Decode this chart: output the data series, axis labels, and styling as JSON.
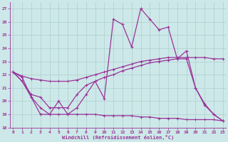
{
  "xlabel": "Windchill (Refroidissement éolien,°C)",
  "bg_color": "#cde8e8",
  "line_color": "#993399",
  "grid_color": "#aacccc",
  "xlim": [
    0,
    23
  ],
  "ylim": [
    18,
    27.5
  ],
  "yticks": [
    18,
    19,
    20,
    21,
    22,
    23,
    24,
    25,
    26,
    27
  ],
  "xticks": [
    0,
    1,
    2,
    3,
    4,
    5,
    6,
    7,
    8,
    9,
    10,
    11,
    12,
    13,
    14,
    15,
    16,
    17,
    18,
    19,
    20,
    21,
    22,
    23
  ],
  "line1_x": [
    0,
    1,
    2,
    3,
    4,
    5,
    6,
    7,
    8,
    9,
    10,
    11,
    12,
    13,
    14,
    15,
    16,
    17,
    18,
    19,
    20,
    21,
    22,
    23
  ],
  "line1_y": [
    22.2,
    21.9,
    21.7,
    21.6,
    21.5,
    21.5,
    21.5,
    21.6,
    21.8,
    22.0,
    22.2,
    22.4,
    22.6,
    22.8,
    23.0,
    23.1,
    23.2,
    23.3,
    23.3,
    23.3,
    23.3,
    23.3,
    23.2,
    23.2
  ],
  "line2_x": [
    0,
    1,
    2,
    3,
    4,
    5,
    6,
    7,
    8,
    9,
    10,
    11,
    12,
    13,
    14,
    15,
    16,
    17,
    18,
    19,
    20,
    21,
    22,
    23
  ],
  "line2_y": [
    22.2,
    21.8,
    20.3,
    19.0,
    19.0,
    20.0,
    19.0,
    19.5,
    20.5,
    21.5,
    20.2,
    26.2,
    25.8,
    24.1,
    27.0,
    26.2,
    25.4,
    25.6,
    23.2,
    23.8,
    21.0,
    19.7,
    19.0,
    18.5
  ],
  "line3_x": [
    0,
    1,
    2,
    3,
    4,
    5,
    6,
    7,
    8,
    9,
    10,
    11,
    12,
    13,
    14,
    15,
    16,
    17,
    18,
    19,
    20,
    21,
    22,
    23
  ],
  "line3_y": [
    22.2,
    21.5,
    20.5,
    20.3,
    19.5,
    19.5,
    19.5,
    20.5,
    21.2,
    21.5,
    21.8,
    22.0,
    22.3,
    22.5,
    22.7,
    22.9,
    23.0,
    23.1,
    23.2,
    23.2,
    21.0,
    19.8,
    19.0,
    18.5
  ],
  "line4_x": [
    0,
    1,
    2,
    3,
    4,
    5,
    6,
    7,
    8,
    9,
    10,
    11,
    12,
    13,
    14,
    15,
    16,
    17,
    18,
    19,
    20,
    21,
    22,
    23
  ],
  "line4_y": [
    22.2,
    21.5,
    20.3,
    19.5,
    19.0,
    19.0,
    19.0,
    19.0,
    19.0,
    19.0,
    18.9,
    18.9,
    18.9,
    18.9,
    18.8,
    18.8,
    18.7,
    18.7,
    18.7,
    18.6,
    18.6,
    18.6,
    18.6,
    18.5
  ]
}
